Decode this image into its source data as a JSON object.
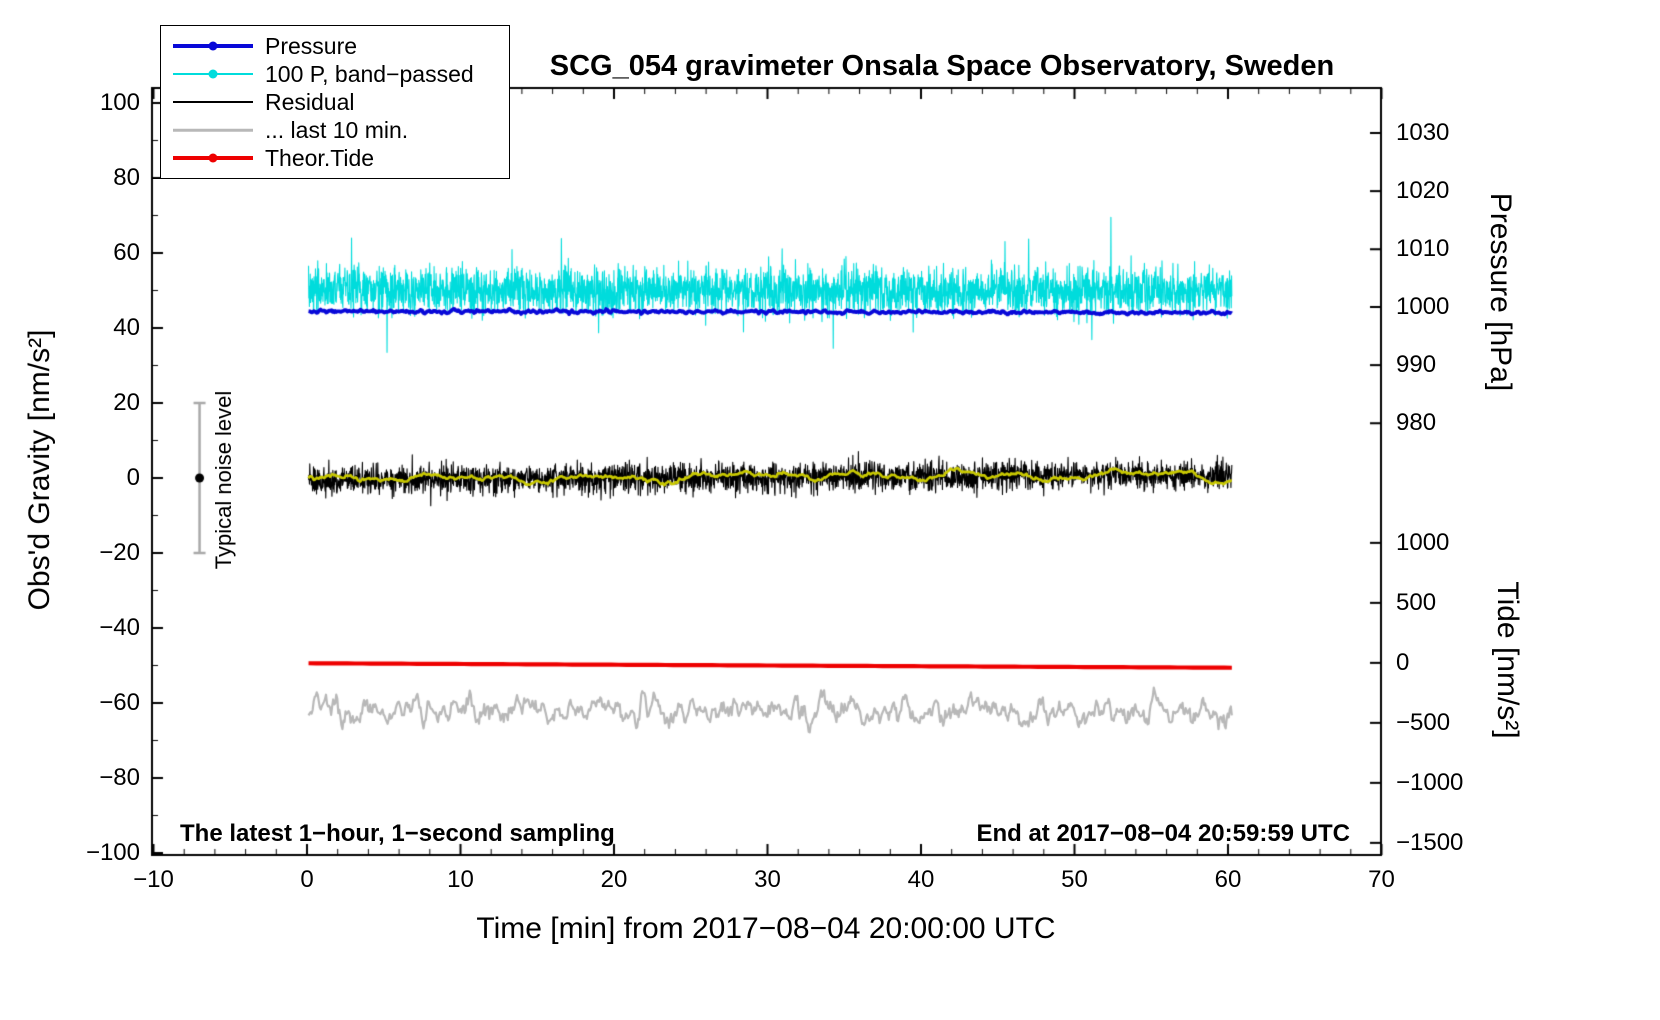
{
  "annotations": {
    "sampling": "The latest 1−hour, 1−second sampling",
    "end_time": "End at 2017−08−04 20:59:59 UTC"
  },
  "legend": {
    "items": [
      {
        "label": "Pressure",
        "color": "#0808d8",
        "marker": true,
        "line_width": 4
      },
      {
        "label": "100 P, band−passed",
        "color": "#00dcdc",
        "marker": true,
        "line_width": 2
      },
      {
        "label": "Residual",
        "color": "#000000",
        "marker": false,
        "line_width": 2
      },
      {
        "label": "... last 10 min.",
        "color": "#b8b8b8",
        "marker": false,
        "line_width": 2.5
      },
      {
        "label": "Theor.Tide",
        "color": "#ee0000",
        "marker": true,
        "line_width": 4
      }
    ]
  },
  "chart_data": {
    "type": "line",
    "title": "SCG_054 gravimeter Onsala Space Observatory, Sweden",
    "xlabel": "Time [min] from 2017−08−04 20:00:00 UTC",
    "x_axis": {
      "min": -10,
      "max": 70,
      "major_ticks": [
        -10,
        0,
        10,
        20,
        30,
        40,
        50,
        60,
        70
      ],
      "minor_step": 2
    },
    "gravity_axis": {
      "label": "Obs'd Gravity [nm/s²]",
      "min": -100,
      "max": 100,
      "major_ticks": [
        100,
        80,
        60,
        40,
        20,
        0,
        -20,
        -40,
        -60,
        -80,
        -100
      ],
      "minor_step": 10
    },
    "pressure_axis": {
      "label": "Pressure [hPa]",
      "ticks": [
        {
          "value": 1030,
          "gravity_pos": 92.0
        },
        {
          "value": 1020,
          "gravity_pos": 76.5
        },
        {
          "value": 1010,
          "gravity_pos": 61.0
        },
        {
          "value": 1000,
          "gravity_pos": 45.6
        },
        {
          "value": 990,
          "gravity_pos": 30.1
        },
        {
          "value": 980,
          "gravity_pos": 14.6
        }
      ]
    },
    "tide_axis": {
      "label": "Tide [nm/s²]",
      "ticks": [
        {
          "value": 1000,
          "gravity_pos": -17.3
        },
        {
          "value": 500,
          "gravity_pos": -33.3
        },
        {
          "value": 0,
          "gravity_pos": -49.3
        },
        {
          "value": -500,
          "gravity_pos": -65.3
        },
        {
          "value": -1000,
          "gravity_pos": -81.3
        },
        {
          "value": -1500,
          "gravity_pos": -97.3
        }
      ]
    },
    "noise_bar": {
      "label": "Typical noise level",
      "x": -7,
      "center": 0,
      "half_range": 20
    },
    "series": [
      {
        "name": "100 P, band−passed",
        "color": "#00dcdc",
        "width": 1.1,
        "x_start": 0.1,
        "x_end": 60.25,
        "y_start": 50.2,
        "y_end": 49.8,
        "noise_std": 3.1,
        "spike_prob": 0.01,
        "spike_amp": 15,
        "smooth": 0,
        "points": 3200
      },
      {
        "name": "Pressure",
        "color": "#0808d8",
        "width": 3.8,
        "x_start": 0.1,
        "x_end": 60.25,
        "y_start": 44.5,
        "y_end": 44.1,
        "noise_std": 0.22,
        "spike_prob": 0,
        "spike_amp": 0,
        "smooth": 3,
        "points": 1000,
        "approx_value_hpa": 999
      },
      {
        "name": "Residual",
        "color": "#000000",
        "width": 1.1,
        "x_start": 0.1,
        "x_end": 60.25,
        "y_start": -0.6,
        "y_end": 0.9,
        "noise_std": 1.9,
        "spike_prob": 0.02,
        "spike_amp": 4,
        "smooth": 0,
        "points": 3000
      },
      {
        "name": "Residual low−passed",
        "color": "#c9c900",
        "width": 2.6,
        "x_start": 0.1,
        "x_end": 60.25,
        "y_start": -0.5,
        "y_end": 1.0,
        "noise_std": 0.85,
        "spike_prob": 0,
        "spike_amp": 0,
        "smooth": 31,
        "points": 900
      },
      {
        "name": "... last 10 min.",
        "color": "#b8b8b8",
        "width": 2.2,
        "x_start": 0.1,
        "x_end": 60.25,
        "y_start": -62.0,
        "y_end": -62.3,
        "noise_std": 2.1,
        "spike_prob": 0.02,
        "spike_amp": 3,
        "smooth": 5,
        "points": 900
      },
      {
        "name": "Theor.Tide",
        "color": "#ee0000",
        "width": 4.2,
        "x_start": 0.1,
        "x_end": 60.25,
        "y_start": -49.4,
        "y_end": -50.6,
        "noise_std": 0,
        "spike_prob": 0,
        "spike_amp": 0,
        "smooth": 0,
        "points": 120
      }
    ]
  }
}
